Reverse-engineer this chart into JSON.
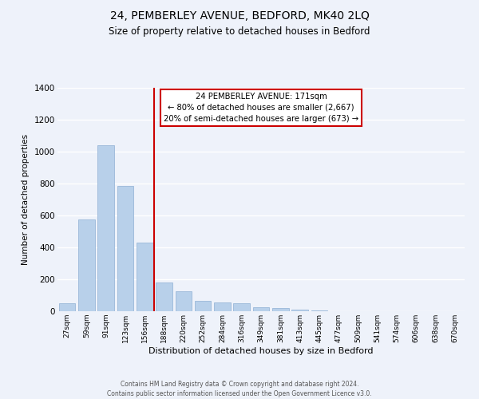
{
  "title": "24, PEMBERLEY AVENUE, BEDFORD, MK40 2LQ",
  "subtitle": "Size of property relative to detached houses in Bedford",
  "xlabel": "Distribution of detached houses by size in Bedford",
  "ylabel": "Number of detached properties",
  "bar_labels": [
    "27sqm",
    "59sqm",
    "91sqm",
    "123sqm",
    "156sqm",
    "188sqm",
    "220sqm",
    "252sqm",
    "284sqm",
    "316sqm",
    "349sqm",
    "381sqm",
    "413sqm",
    "445sqm",
    "477sqm",
    "509sqm",
    "541sqm",
    "574sqm",
    "606sqm",
    "638sqm",
    "670sqm"
  ],
  "bar_values": [
    50,
    575,
    1040,
    785,
    430,
    180,
    125,
    65,
    55,
    50,
    25,
    20,
    10,
    5,
    0,
    0,
    0,
    0,
    0,
    0,
    0
  ],
  "bar_color": "#b8d0ea",
  "bar_edgecolor": "#9ab8d8",
  "vline_x_index": 4.5,
  "vline_color": "#cc0000",
  "ylim": [
    0,
    1400
  ],
  "yticks": [
    0,
    200,
    400,
    600,
    800,
    1000,
    1200,
    1400
  ],
  "annotation_title": "24 PEMBERLEY AVENUE: 171sqm",
  "annotation_line1": "← 80% of detached houses are smaller (2,667)",
  "annotation_line2": "20% of semi-detached houses are larger (673) →",
  "annotation_box_color": "#cc0000",
  "footer_line1": "Contains HM Land Registry data © Crown copyright and database right 2024.",
  "footer_line2": "Contains public sector information licensed under the Open Government Licence v3.0.",
  "bg_color": "#eef2fa",
  "plot_bg_color": "#eef2fa",
  "grid_color": "#ffffff"
}
